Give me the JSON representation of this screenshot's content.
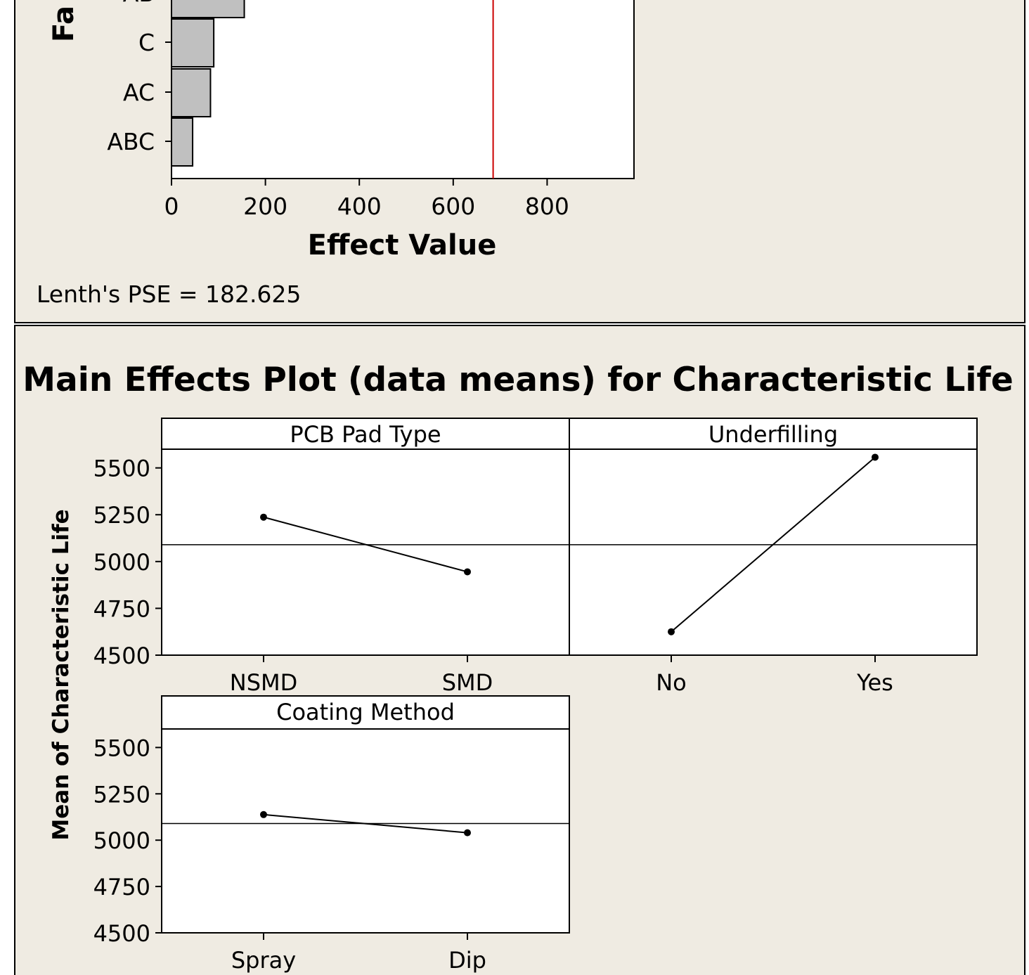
{
  "chart_data": [
    {
      "type": "bar",
      "orientation": "horizontal",
      "title": "",
      "xlabel": "Effect Value",
      "ylabel": "Factor",
      "ylabel_visible": "Fa",
      "categories": [
        "AB",
        "C",
        "AC",
        "ABC"
      ],
      "values": [
        155,
        90,
        83,
        45
      ],
      "xlim": [
        0,
        985
      ],
      "xticks": [
        0,
        200,
        400,
        600,
        800
      ],
      "xtick_labels": [
        "0",
        "200",
        "400",
        "600",
        "800"
      ],
      "reference_line": {
        "value": 685,
        "color": "#cc0000"
      },
      "annotation": "Lenth's PSE = 182.625",
      "bar_color": "#c0c0c0"
    },
    {
      "type": "line",
      "title": "Main Effects Plot (data means) for Characteristic Life",
      "ylabel": "Mean of Characteristic Life",
      "ylim": [
        4500,
        5600
      ],
      "yticks": [
        4500,
        4750,
        5000,
        5250,
        5500
      ],
      "ytick_labels": [
        "4500",
        "4750",
        "5000",
        "5250",
        "5500"
      ],
      "grand_mean": 5090,
      "panels": [
        {
          "name": "PCB Pad Type",
          "categories": [
            "NSMD",
            "SMD"
          ],
          "values": [
            5237,
            4945
          ]
        },
        {
          "name": "Underfilling",
          "categories": [
            "No",
            "Yes"
          ],
          "values": [
            4625,
            5557
          ]
        },
        {
          "name": "Coating Method",
          "categories": [
            "Spray",
            "Dip"
          ],
          "values": [
            5138,
            5040
          ]
        }
      ]
    }
  ],
  "colors": {
    "background": "#efebe2",
    "plot_bg": "#ffffff",
    "axis": "#000000",
    "ref_line": "#cc0000"
  }
}
